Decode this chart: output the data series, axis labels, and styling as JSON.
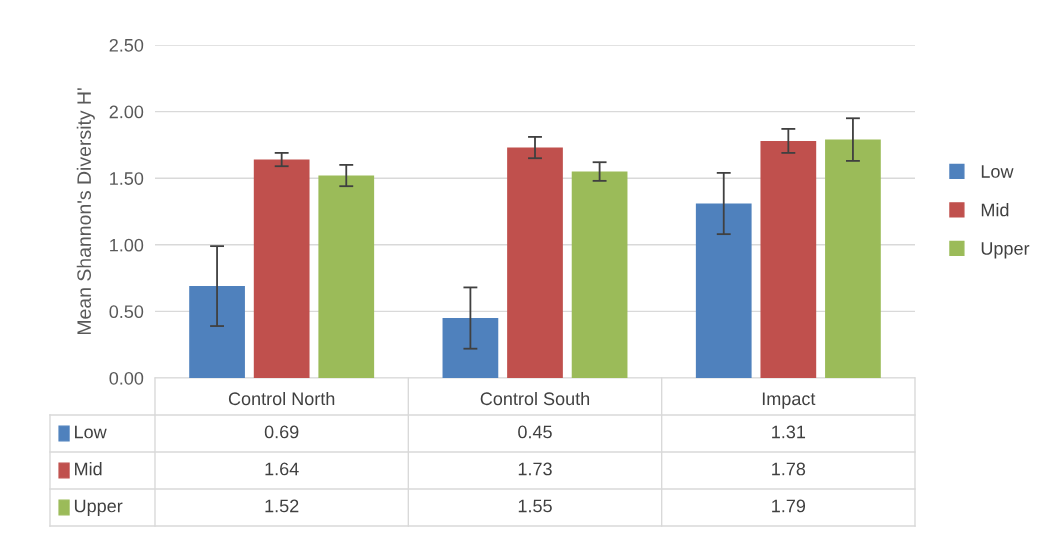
{
  "chart_data": {
    "type": "bar",
    "ylabel": "Mean Shannon's Diversity H'",
    "categories": [
      "Control North",
      "Control South",
      "Impact"
    ],
    "series": [
      {
        "name": "Low",
        "color": "#4f81bd",
        "values": [
          0.69,
          0.45,
          1.31
        ],
        "errors": [
          0.3,
          0.23,
          0.23
        ]
      },
      {
        "name": "Mid",
        "color": "#c0504d",
        "values": [
          1.64,
          1.73,
          1.78
        ],
        "errors": [
          0.05,
          0.08,
          0.09
        ]
      },
      {
        "name": "Upper",
        "color": "#9bbb59",
        "values": [
          1.52,
          1.55,
          1.79
        ],
        "errors": [
          0.08,
          0.07,
          0.16
        ]
      }
    ],
    "ylim": [
      0,
      2.5
    ],
    "yticks": [
      {
        "value": 0,
        "label": "0.00"
      },
      {
        "value": 0.5,
        "label": "0.50"
      },
      {
        "value": 1,
        "label": "1.00"
      },
      {
        "value": 1.5,
        "label": "1.50"
      },
      {
        "value": 2,
        "label": "2.00"
      },
      {
        "value": 2.5,
        "label": "2.50"
      }
    ],
    "grid": "y",
    "legend": "right",
    "data_labels": true
  }
}
